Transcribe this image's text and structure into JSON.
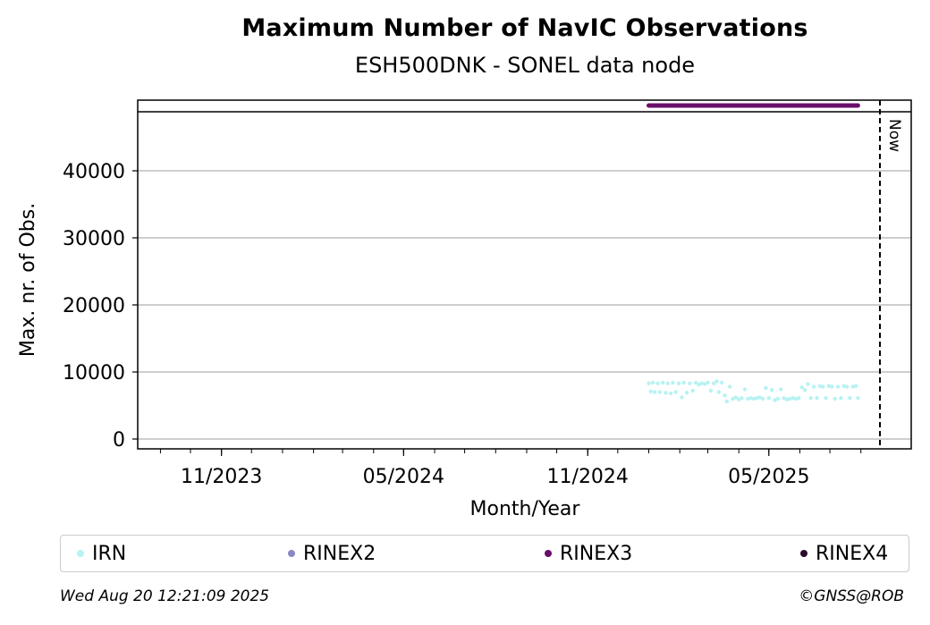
{
  "chart_data": {
    "type": "scatter",
    "title": "Maximum Number of NavIC Observations",
    "subtitle": "ESH500DNK - SONEL data node",
    "xlabel": "Month/Year",
    "ylabel": "Max. nr. of Obs.",
    "x_ticks": [
      "11/2023",
      "05/2024",
      "11/2024",
      "05/2025"
    ],
    "x_range": [
      "2023-08-20",
      "2025-08-20"
    ],
    "y_ticks": [
      "0",
      "10000",
      "20000",
      "30000",
      "40000"
    ],
    "ylim": [
      -1500,
      48800
    ],
    "grid": "y",
    "now_label": "Now",
    "now_date": "2025-08-20",
    "legend_position": "bottom",
    "series": [
      {
        "name": "IRN",
        "color": "#b8f2f2",
        "values": [
          [
            "2025-01-01",
            8300
          ],
          [
            "2025-01-03",
            7100
          ],
          [
            "2025-01-05",
            8400
          ],
          [
            "2025-01-07",
            7000
          ],
          [
            "2025-01-10",
            8300
          ],
          [
            "2025-01-12",
            7000
          ],
          [
            "2025-01-15",
            8400
          ],
          [
            "2025-01-18",
            6900
          ],
          [
            "2025-01-20",
            8300
          ],
          [
            "2025-01-23",
            6800
          ],
          [
            "2025-01-25",
            8400
          ],
          [
            "2025-01-28",
            7000
          ],
          [
            "2025-01-31",
            8300
          ],
          [
            "2025-02-03",
            6200
          ],
          [
            "2025-02-05",
            8400
          ],
          [
            "2025-02-08",
            6900
          ],
          [
            "2025-02-11",
            8300
          ],
          [
            "2025-02-14",
            7200
          ],
          [
            "2025-02-17",
            8400
          ],
          [
            "2025-02-20",
            8100
          ],
          [
            "2025-02-23",
            8300
          ],
          [
            "2025-02-26",
            8200
          ],
          [
            "2025-03-01",
            8400
          ],
          [
            "2025-03-04",
            7200
          ],
          [
            "2025-03-07",
            8300
          ],
          [
            "2025-03-10",
            8600
          ],
          [
            "2025-03-12",
            7000
          ],
          [
            "2025-03-15",
            8400
          ],
          [
            "2025-03-18",
            6500
          ],
          [
            "2025-03-20",
            5600
          ],
          [
            "2025-03-23",
            7800
          ],
          [
            "2025-03-26",
            6000
          ],
          [
            "2025-03-29",
            6200
          ],
          [
            "2025-04-01",
            5900
          ],
          [
            "2025-04-04",
            6100
          ],
          [
            "2025-04-07",
            7400
          ],
          [
            "2025-04-10",
            6000
          ],
          [
            "2025-04-13",
            6100
          ],
          [
            "2025-04-16",
            6000
          ],
          [
            "2025-04-19",
            6100
          ],
          [
            "2025-04-22",
            6200
          ],
          [
            "2025-04-25",
            6000
          ],
          [
            "2025-04-28",
            7600
          ],
          [
            "2025-05-01",
            6100
          ],
          [
            "2025-05-04",
            7300
          ],
          [
            "2025-05-07",
            5800
          ],
          [
            "2025-05-10",
            6000
          ],
          [
            "2025-05-13",
            7400
          ],
          [
            "2025-05-16",
            6100
          ],
          [
            "2025-05-19",
            5900
          ],
          [
            "2025-05-22",
            6000
          ],
          [
            "2025-05-25",
            6100
          ],
          [
            "2025-05-28",
            6000
          ],
          [
            "2025-05-31",
            6100
          ],
          [
            "2025-06-03",
            7700
          ],
          [
            "2025-06-06",
            7300
          ],
          [
            "2025-06-09",
            8200
          ],
          [
            "2025-06-12",
            6100
          ],
          [
            "2025-06-15",
            7800
          ],
          [
            "2025-06-18",
            6100
          ],
          [
            "2025-06-21",
            7900
          ],
          [
            "2025-06-24",
            7800
          ],
          [
            "2025-06-27",
            6100
          ],
          [
            "2025-06-30",
            7900
          ],
          [
            "2025-07-03",
            7800
          ],
          [
            "2025-07-06",
            6000
          ],
          [
            "2025-07-09",
            7800
          ],
          [
            "2025-07-12",
            6100
          ],
          [
            "2025-07-15",
            7900
          ],
          [
            "2025-07-18",
            7800
          ],
          [
            "2025-07-21",
            6100
          ],
          [
            "2025-07-24",
            7800
          ],
          [
            "2025-07-27",
            7900
          ],
          [
            "2025-07-29",
            6100
          ]
        ]
      },
      {
        "name": "RINEX2",
        "color": "#8b86c4",
        "values": []
      },
      {
        "name": "RINEX3",
        "color": "#6a0e6a",
        "range": [
          "2025-01-01",
          "2025-07-29"
        ]
      },
      {
        "name": "RINEX4",
        "color": "#2a0a2a",
        "values": []
      }
    ]
  },
  "footer": {
    "timestamp": "Wed Aug 20 12:21:09 2025",
    "credit": "©GNSS@ROB"
  }
}
